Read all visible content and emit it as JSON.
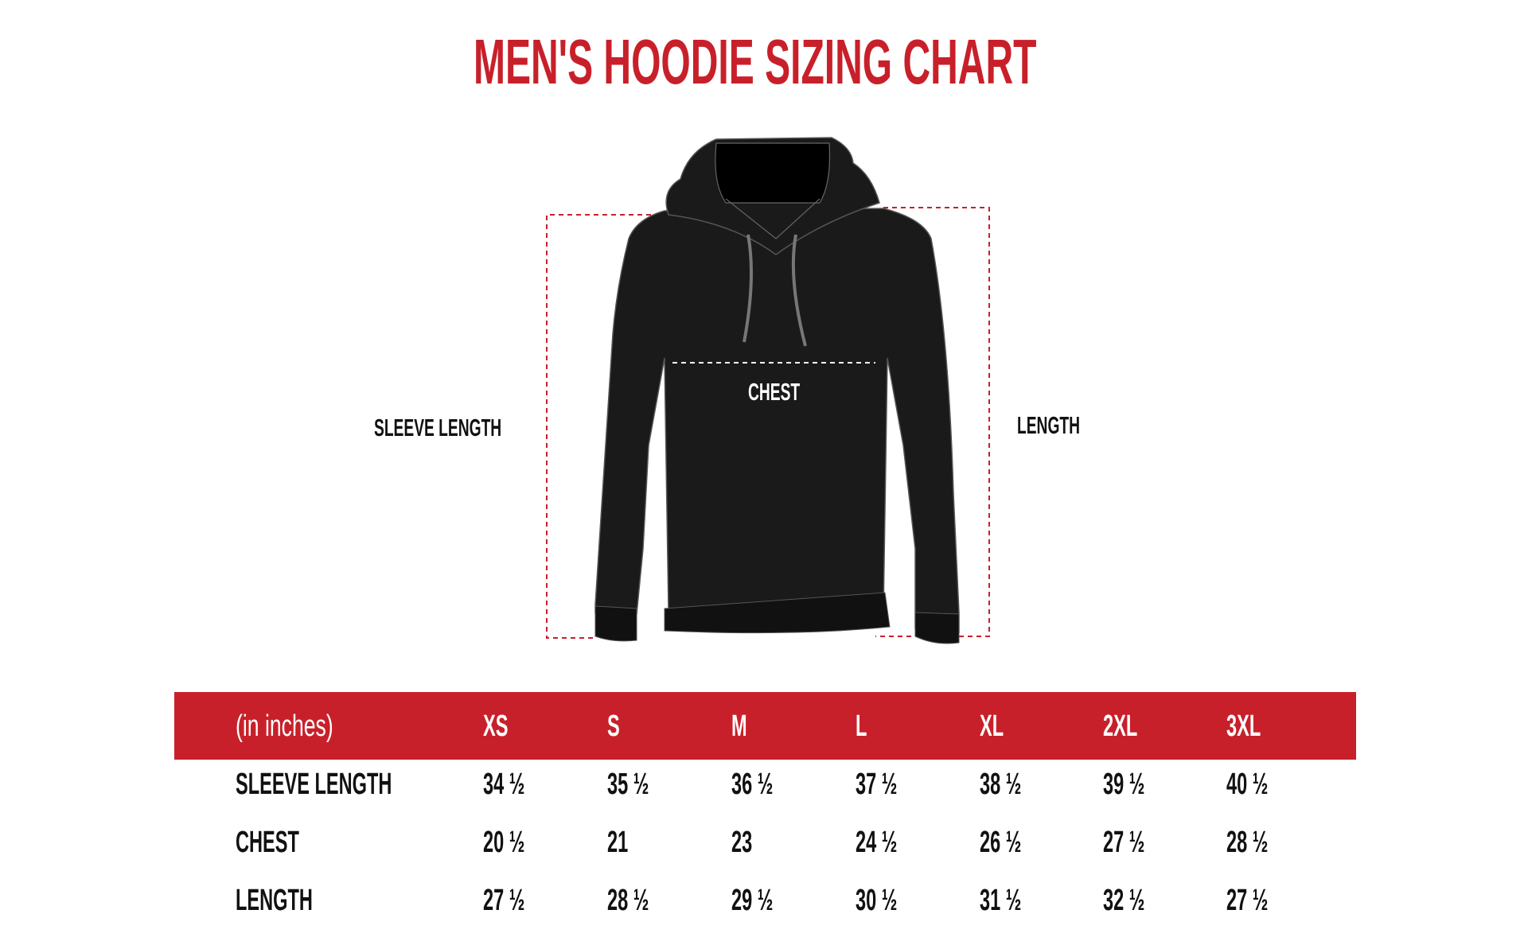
{
  "title": "MEN'S HOODIE SIZING CHART",
  "diagram": {
    "labels": {
      "chest": "CHEST",
      "sleeve_length": "SLEEVE LENGTH",
      "length": "LENGTH"
    },
    "colors": {
      "accent": "#c8202a",
      "garment": "#1a1a1a"
    }
  },
  "table": {
    "header": [
      "(in inches)",
      "XS",
      "S",
      "M",
      "L",
      "XL",
      "2XL",
      "3XL"
    ],
    "rows": [
      [
        "SLEEVE LENGTH",
        "34 ½",
        "35 ½",
        "36 ½",
        "37 ½",
        "38 ½",
        "39 ½",
        "40 ½"
      ],
      [
        "CHEST",
        "20 ½",
        "21",
        "23",
        "24 ½",
        "26 ½",
        "27 ½",
        "28 ½"
      ],
      [
        "LENGTH",
        "27 ½",
        "28 ½",
        "29 ½",
        "30 ½",
        "31 ½",
        "32 ½",
        "27 ½"
      ]
    ]
  }
}
